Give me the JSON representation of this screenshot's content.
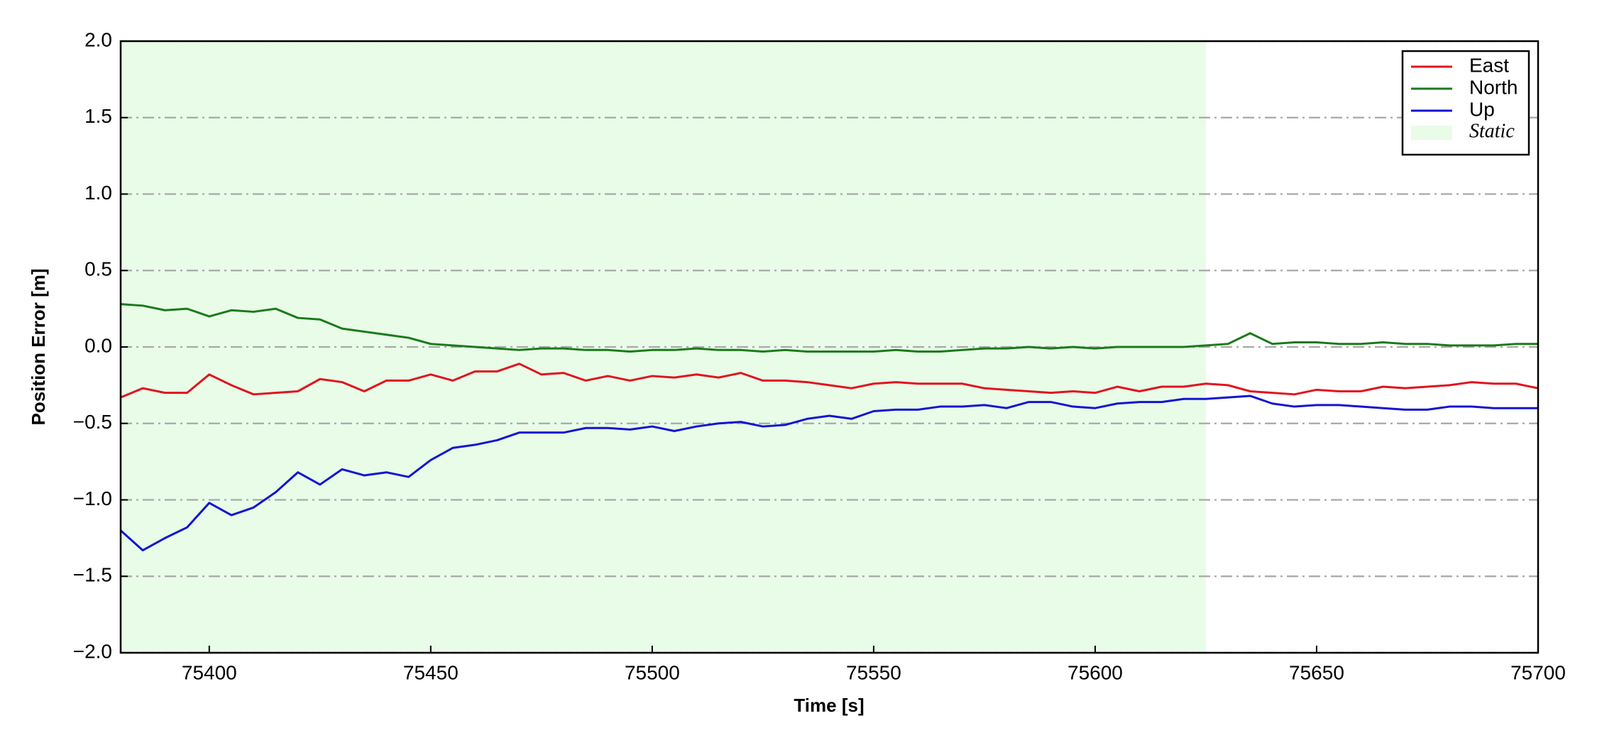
{
  "chart_data": {
    "type": "line",
    "x_label": "Time [s]",
    "y_label": "Position Error [m]",
    "x": [
      75380,
      75385,
      75390,
      75395,
      75400,
      75405,
      75410,
      75415,
      75420,
      75425,
      75430,
      75435,
      75440,
      75445,
      75450,
      75455,
      75460,
      75465,
      75470,
      75475,
      75480,
      75485,
      75490,
      75495,
      75500,
      75505,
      75510,
      75515,
      75520,
      75525,
      75530,
      75535,
      75540,
      75545,
      75550,
      75555,
      75560,
      75565,
      75570,
      75575,
      75580,
      75585,
      75590,
      75595,
      75600,
      75605,
      75610,
      75615,
      75620,
      75625,
      75630,
      75635,
      75640,
      75645,
      75650,
      75655,
      75660,
      75665,
      75670,
      75675,
      75680,
      75685,
      75690,
      75695,
      75700
    ],
    "series": [
      {
        "name": "East",
        "color": "#e0141e",
        "values": [
          -0.33,
          -0.27,
          -0.3,
          -0.3,
          -0.18,
          -0.25,
          -0.31,
          -0.3,
          -0.29,
          -0.21,
          -0.23,
          -0.29,
          -0.22,
          -0.22,
          -0.18,
          -0.22,
          -0.16,
          -0.16,
          -0.11,
          -0.18,
          -0.17,
          -0.22,
          -0.19,
          -0.22,
          -0.19,
          -0.2,
          -0.18,
          -0.2,
          -0.17,
          -0.22,
          -0.22,
          -0.23,
          -0.25,
          -0.27,
          -0.24,
          -0.23,
          -0.24,
          -0.24,
          -0.24,
          -0.27,
          -0.28,
          -0.29,
          -0.3,
          -0.29,
          -0.3,
          -0.26,
          -0.29,
          -0.26,
          -0.26,
          -0.24,
          -0.25,
          -0.29,
          -0.3,
          -0.31,
          -0.28,
          -0.29,
          -0.29,
          -0.26,
          -0.27,
          -0.26,
          -0.25,
          -0.23,
          -0.24,
          -0.24,
          -0.27
        ]
      },
      {
        "name": "North",
        "color": "#1a7a1a",
        "values": [
          0.28,
          0.27,
          0.24,
          0.25,
          0.2,
          0.24,
          0.23,
          0.25,
          0.19,
          0.18,
          0.12,
          0.1,
          0.08,
          0.06,
          0.02,
          0.01,
          0.0,
          -0.01,
          -0.02,
          -0.01,
          -0.01,
          -0.02,
          -0.02,
          -0.03,
          -0.02,
          -0.02,
          -0.01,
          -0.02,
          -0.02,
          -0.03,
          -0.02,
          -0.03,
          -0.03,
          -0.03,
          -0.03,
          -0.02,
          -0.03,
          -0.03,
          -0.02,
          -0.01,
          -0.01,
          0.0,
          -0.01,
          0.0,
          -0.01,
          0.0,
          0.0,
          0.0,
          0.0,
          0.01,
          0.02,
          0.09,
          0.02,
          0.03,
          0.03,
          0.02,
          0.02,
          0.03,
          0.02,
          0.02,
          0.01,
          0.01,
          0.01,
          0.02,
          0.02
        ]
      },
      {
        "name": "Up",
        "color": "#1414d2",
        "values": [
          -1.2,
          -1.33,
          -1.25,
          -1.18,
          -1.02,
          -1.1,
          -1.05,
          -0.95,
          -0.82,
          -0.9,
          -0.8,
          -0.84,
          -0.82,
          -0.85,
          -0.74,
          -0.66,
          -0.64,
          -0.61,
          -0.56,
          -0.56,
          -0.56,
          -0.53,
          -0.53,
          -0.54,
          -0.52,
          -0.55,
          -0.52,
          -0.5,
          -0.49,
          -0.52,
          -0.51,
          -0.47,
          -0.45,
          -0.47,
          -0.42,
          -0.41,
          -0.41,
          -0.39,
          -0.39,
          -0.38,
          -0.4,
          -0.36,
          -0.36,
          -0.39,
          -0.4,
          -0.37,
          -0.36,
          -0.36,
          -0.34,
          -0.34,
          -0.33,
          -0.32,
          -0.37,
          -0.39,
          -0.38,
          -0.38,
          -0.39,
          -0.4,
          -0.41,
          -0.41,
          -0.39,
          -0.39,
          -0.4,
          -0.4,
          -0.4
        ]
      }
    ],
    "shaded_region": {
      "name": "Static",
      "xlim": [
        75380,
        75625
      ],
      "color": "#e8fce8"
    },
    "xlim": [
      75380,
      75700
    ],
    "xticks": [
      75400,
      75450,
      75500,
      75550,
      75600,
      75650,
      75700
    ],
    "ylim": [
      -2,
      2
    ],
    "yticks": [
      {
        "value": -2,
        "label": "−2.0"
      },
      {
        "value": -1.5,
        "label": "−1.5"
      },
      {
        "value": -1,
        "label": "−1.0"
      },
      {
        "value": -0.5,
        "label": "−0.5"
      },
      {
        "value": 0,
        "label": "0.0"
      },
      0.5,
      {
        "value": 1,
        "label": "1.0"
      },
      1.5,
      {
        "value": 2,
        "label": "2.0"
      }
    ],
    "grid": true,
    "legend": "upper right"
  }
}
